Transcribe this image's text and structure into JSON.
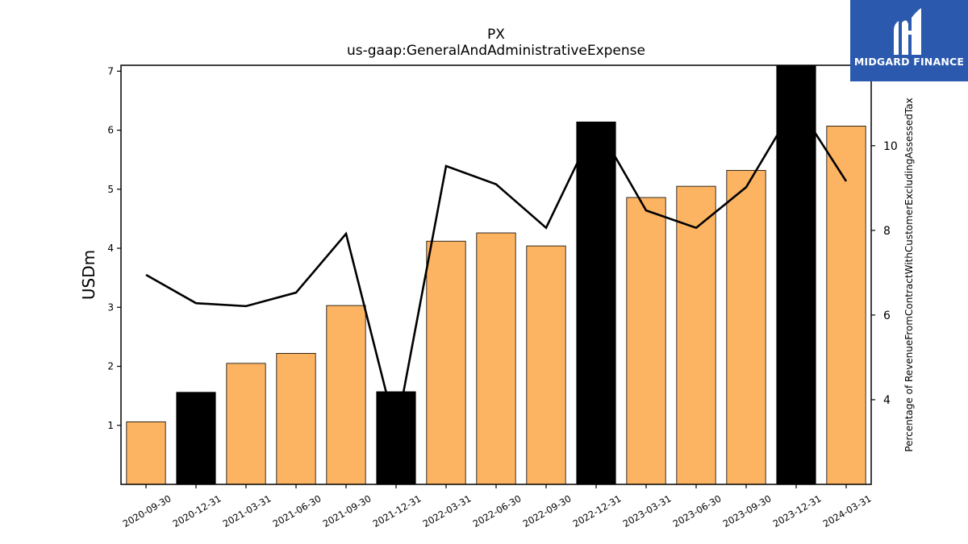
{
  "chart_data": {
    "type": "bar",
    "title": "PX",
    "subtitle": "us-gaap:GeneralAndAdministrativeExpense",
    "ylabel": "USDm",
    "y2label": "Percentage of RevenueFromContractWithCustomerExcludingAssessedTax",
    "categories": [
      "2020-09-30",
      "2020-12-31",
      "2021-03-31",
      "2021-06-30",
      "2021-09-30",
      "2021-12-31",
      "2022-03-31",
      "2022-06-30",
      "2022-09-30",
      "2022-12-31",
      "2023-03-31",
      "2023-06-30",
      "2023-09-30",
      "2023-12-31",
      "2024-03-31"
    ],
    "series": [
      {
        "type": "bar",
        "axis": "left",
        "values": [
          1.06,
          1.56,
          2.05,
          2.22,
          3.03,
          1.57,
          4.12,
          4.26,
          4.04,
          6.14,
          4.86,
          5.05,
          5.32,
          7.1,
          6.07
        ],
        "highlight": [
          false,
          true,
          false,
          false,
          false,
          true,
          false,
          false,
          false,
          true,
          false,
          false,
          false,
          true,
          false
        ]
      },
      {
        "type": "line",
        "axis": "right",
        "values": [
          6.95,
          6.28,
          6.21,
          6.53,
          7.92,
          3.25,
          9.52,
          9.09,
          8.06,
          10.52,
          8.47,
          8.06,
          9.02,
          11.0,
          9.16
        ]
      }
    ],
    "ylim": [
      0,
      7.1
    ],
    "y2lim": [
      2.0,
      11.9
    ],
    "yticks": [
      1,
      2,
      3,
      4,
      5,
      6,
      7
    ],
    "y2ticks": [
      4,
      6,
      8,
      10
    ],
    "colors": {
      "bar": "#fdb462",
      "bar_highlight": "#000000",
      "line": "#000000"
    },
    "grid": false
  },
  "logo": {
    "text": "MIDGARD FINANCE",
    "background": "#2b59ae"
  }
}
